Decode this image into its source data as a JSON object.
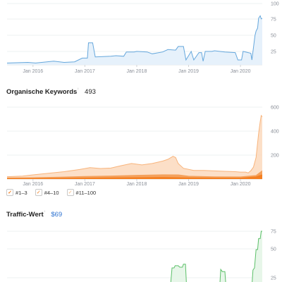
{
  "sections": {
    "keywords": {
      "title": "Organische Keywords",
      "value": "493"
    },
    "traffic_value": {
      "title": "Traffic-Wert",
      "value": "$69"
    }
  },
  "info_icon": "ⁱ",
  "legend": [
    {
      "label": "#1–3",
      "color": "#f47f21",
      "check": "✓"
    },
    {
      "label": "#4–10",
      "color": "#f4a15c",
      "check": "✓"
    },
    {
      "label": "#11–100",
      "color": "#f8c89c",
      "check": "✓"
    }
  ],
  "colors": {
    "blue": "#65a7dc",
    "orange": "#f4a15c",
    "dark_orange": "#f47f21",
    "green": "#5cc069",
    "value_blue": "#2e73d1"
  },
  "chart_data": [
    {
      "type": "area",
      "name": "rating",
      "x_ticks": [
        "Jan 2016",
        "Jan 2017",
        "Jan 2018",
        "Jan 2019",
        "Jan 2020"
      ],
      "y_ticks": [
        "100",
        "75",
        "50",
        "25"
      ],
      "ylim": [
        0,
        100
      ],
      "xlim": [
        2015.5,
        2020.42
      ],
      "series": [
        {
          "values": [
            [
              2015.5,
              3
            ],
            [
              2015.9,
              4
            ],
            [
              2016.05,
              3
            ],
            [
              2016.4,
              6
            ],
            [
              2016.6,
              4
            ],
            [
              2016.8,
              5
            ],
            [
              2016.95,
              11
            ],
            [
              2017.05,
              11
            ],
            [
              2017.07,
              36
            ],
            [
              2017.15,
              36
            ],
            [
              2017.2,
              13
            ],
            [
              2017.5,
              14
            ],
            [
              2017.6,
              15
            ],
            [
              2017.75,
              14
            ],
            [
              2017.8,
              21
            ],
            [
              2017.95,
              21
            ],
            [
              2018.0,
              22
            ],
            [
              2018.2,
              21
            ],
            [
              2018.3,
              18
            ],
            [
              2018.5,
              21
            ],
            [
              2018.6,
              25
            ],
            [
              2018.75,
              24
            ],
            [
              2018.8,
              30
            ],
            [
              2018.9,
              30
            ],
            [
              2018.95,
              8
            ],
            [
              2019.05,
              22
            ],
            [
              2019.1,
              8
            ],
            [
              2019.2,
              20
            ],
            [
              2019.25,
              20
            ],
            [
              2019.28,
              6
            ],
            [
              2019.32,
              22
            ],
            [
              2019.45,
              22
            ],
            [
              2019.5,
              23
            ],
            [
              2019.7,
              21
            ],
            [
              2019.9,
              20
            ],
            [
              2019.95,
              8
            ],
            [
              2020.02,
              8
            ],
            [
              2020.05,
              22
            ],
            [
              2020.2,
              19
            ],
            [
              2020.22,
              8
            ],
            [
              2020.28,
              48
            ],
            [
              2020.3,
              55
            ],
            [
              2020.33,
              60
            ],
            [
              2020.35,
              76
            ],
            [
              2020.38,
              80
            ],
            [
              2020.4,
              75
            ],
            [
              2020.42,
              76
            ]
          ]
        }
      ]
    },
    {
      "type": "area",
      "name": "organic-keywords",
      "x_ticks": [
        "Jan 2016",
        "Jan 2017",
        "Jan 2018",
        "Jan 2019",
        "Jan 2020"
      ],
      "y_ticks": [
        "600",
        "400",
        "200"
      ],
      "ylim": [
        0,
        600
      ],
      "xlim": [
        2015.5,
        2020.42
      ],
      "series": [
        {
          "name": "#11–100",
          "values": [
            [
              2015.5,
              20
            ],
            [
              2015.8,
              25
            ],
            [
              2016.0,
              35
            ],
            [
              2016.3,
              48
            ],
            [
              2016.6,
              62
            ],
            [
              2016.9,
              80
            ],
            [
              2017.1,
              95
            ],
            [
              2017.3,
              88
            ],
            [
              2017.5,
              92
            ],
            [
              2017.7,
              112
            ],
            [
              2017.9,
              130
            ],
            [
              2018.1,
              118
            ],
            [
              2018.3,
              130
            ],
            [
              2018.5,
              150
            ],
            [
              2018.6,
              165
            ],
            [
              2018.7,
              190
            ],
            [
              2018.75,
              180
            ],
            [
              2018.8,
              130
            ],
            [
              2018.9,
              90
            ],
            [
              2019.1,
              72
            ],
            [
              2019.3,
              72
            ],
            [
              2019.5,
              68
            ],
            [
              2019.7,
              65
            ],
            [
              2019.9,
              62
            ],
            [
              2020.0,
              58
            ],
            [
              2020.1,
              58
            ],
            [
              2020.15,
              52
            ],
            [
              2020.2,
              70
            ],
            [
              2020.25,
              100
            ],
            [
              2020.3,
              180
            ],
            [
              2020.35,
              380
            ],
            [
              2020.38,
              480
            ],
            [
              2020.4,
              530
            ],
            [
              2020.42,
              520
            ]
          ]
        },
        {
          "name": "#4–10",
          "values": [
            [
              2015.5,
              10
            ],
            [
              2016.0,
              12
            ],
            [
              2016.5,
              16
            ],
            [
              2017.0,
              22
            ],
            [
              2017.5,
              26
            ],
            [
              2018.0,
              32
            ],
            [
              2018.5,
              36
            ],
            [
              2018.8,
              35
            ],
            [
              2019.0,
              24
            ],
            [
              2019.5,
              19
            ],
            [
              2020.0,
              18
            ],
            [
              2020.3,
              30
            ],
            [
              2020.42,
              70
            ]
          ]
        },
        {
          "name": "#1–3",
          "values": [
            [
              2015.5,
              4
            ],
            [
              2016.0,
              5
            ],
            [
              2016.5,
              6
            ],
            [
              2017.0,
              8
            ],
            [
              2017.5,
              10
            ],
            [
              2018.0,
              12
            ],
            [
              2018.5,
              14
            ],
            [
              2019.0,
              10
            ],
            [
              2019.5,
              9
            ],
            [
              2020.0,
              8
            ],
            [
              2020.3,
              18
            ],
            [
              2020.42,
              35
            ]
          ]
        }
      ]
    },
    {
      "type": "area",
      "name": "traffic-value",
      "x_ticks": [],
      "y_ticks": [
        "75",
        "50",
        "25"
      ],
      "ylim": [
        0,
        75
      ],
      "xlim": [
        2015.5,
        2020.42
      ],
      "series": [
        {
          "values": [
            [
              2018.65,
              0
            ],
            [
              2018.68,
              25
            ],
            [
              2018.72,
              25
            ],
            [
              2018.74,
              28
            ],
            [
              2018.8,
              28
            ],
            [
              2018.83,
              26
            ],
            [
              2018.88,
              26
            ],
            [
              2018.9,
              30
            ],
            [
              2018.94,
              30
            ],
            [
              2018.96,
              0
            ],
            [
              2019.6,
              0
            ],
            [
              2019.62,
              23
            ],
            [
              2019.65,
              20
            ],
            [
              2019.7,
              20
            ],
            [
              2019.72,
              0
            ],
            [
              2020.22,
              0
            ],
            [
              2020.24,
              22
            ],
            [
              2020.27,
              25
            ],
            [
              2020.3,
              50
            ],
            [
              2020.33,
              50
            ],
            [
              2020.35,
              65
            ],
            [
              2020.38,
              65
            ],
            [
              2020.4,
              75
            ],
            [
              2020.42,
              75
            ]
          ]
        }
      ]
    }
  ]
}
